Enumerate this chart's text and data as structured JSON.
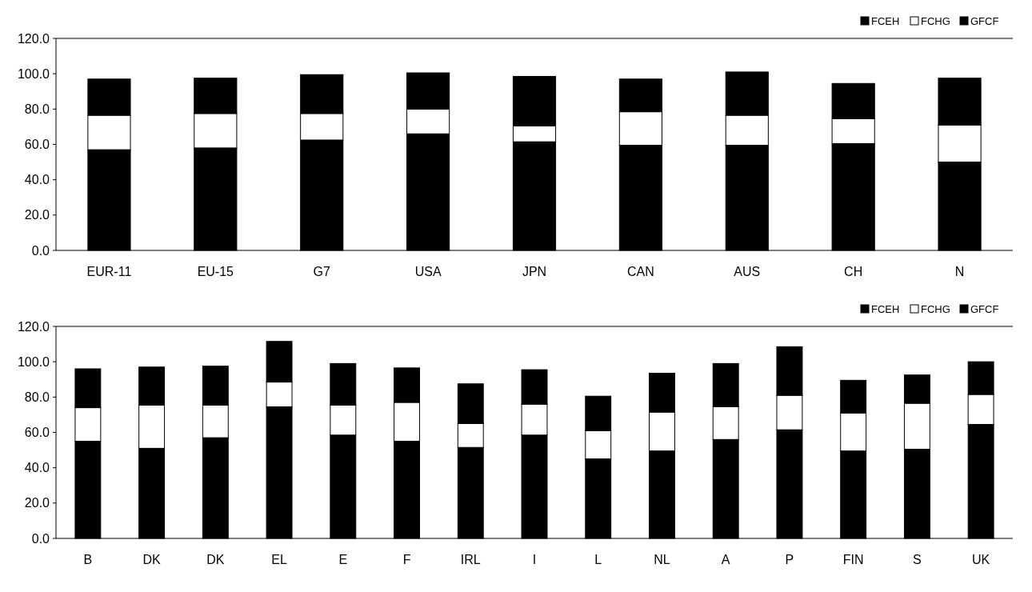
{
  "chart_data": [
    {
      "type": "bar",
      "stacked": true,
      "categories": [
        "EUR-11",
        "EU-15",
        "G7",
        "USA",
        "JPN",
        "CAN",
        "AUS",
        "CH",
        "N"
      ],
      "ylim": [
        0,
        120
      ],
      "yticks": [
        {
          "value": 0,
          "label": "0.0"
        },
        {
          "value": 20,
          "label": "20.0"
        },
        {
          "value": 40,
          "label": "40.0"
        },
        {
          "value": 60,
          "label": "60.0"
        },
        {
          "value": 80,
          "label": "80.0"
        },
        {
          "value": 100,
          "label": "100.0"
        },
        {
          "value": 120,
          "label": "120.0"
        }
      ],
      "legend": "top right",
      "grid": false,
      "series": [
        {
          "name": "FCEH",
          "color": "#000000",
          "values": [
            57,
            58,
            62.5,
            66,
            61.5,
            59.5,
            59.5,
            60.5,
            50
          ]
        },
        {
          "name": "FCHG",
          "color": "#ffffff",
          "values": [
            19.5,
            19.5,
            15,
            14,
            9,
            19,
            17,
            14,
            21
          ]
        },
        {
          "name": "GFCF",
          "color": "#000000",
          "values": [
            20.5,
            20,
            22,
            20.5,
            28,
            18.5,
            24.5,
            20,
            26.5
          ]
        }
      ]
    },
    {
      "type": "bar",
      "stacked": true,
      "categories": [
        "B",
        "DK",
        "DK",
        "EL",
        "E",
        "F",
        "IRL",
        "I",
        "L",
        "NL",
        "A",
        "P",
        "FIN",
        "S",
        "UK"
      ],
      "ylim": [
        0,
        120
      ],
      "yticks": [
        {
          "value": 0,
          "label": "0.0"
        },
        {
          "value": 20,
          "label": "20.0"
        },
        {
          "value": 40,
          "label": "40.0"
        },
        {
          "value": 60,
          "label": "60.0"
        },
        {
          "value": 80,
          "label": "80.0"
        },
        {
          "value": 100,
          "label": "100.0"
        },
        {
          "value": 120,
          "label": "120.0"
        }
      ],
      "legend": "top right",
      "grid": false,
      "series": [
        {
          "name": "FCEH",
          "color": "#000000",
          "values": [
            55,
            51,
            57,
            74.5,
            58.5,
            55,
            51.5,
            58.5,
            45,
            49.5,
            56,
            61.5,
            49.5,
            50.5,
            64.5
          ]
        },
        {
          "name": "FCHG",
          "color": "#ffffff",
          "values": [
            19,
            24.5,
            18.5,
            14,
            17,
            22,
            13.5,
            17.5,
            16,
            22,
            18.5,
            19.5,
            21.5,
            26,
            17
          ]
        },
        {
          "name": "GFCF",
          "color": "#000000",
          "values": [
            22,
            21.5,
            22,
            23,
            23.5,
            19.5,
            22.5,
            19.5,
            19.5,
            22,
            24.5,
            27.5,
            18.5,
            16,
            18.5
          ]
        }
      ]
    }
  ]
}
